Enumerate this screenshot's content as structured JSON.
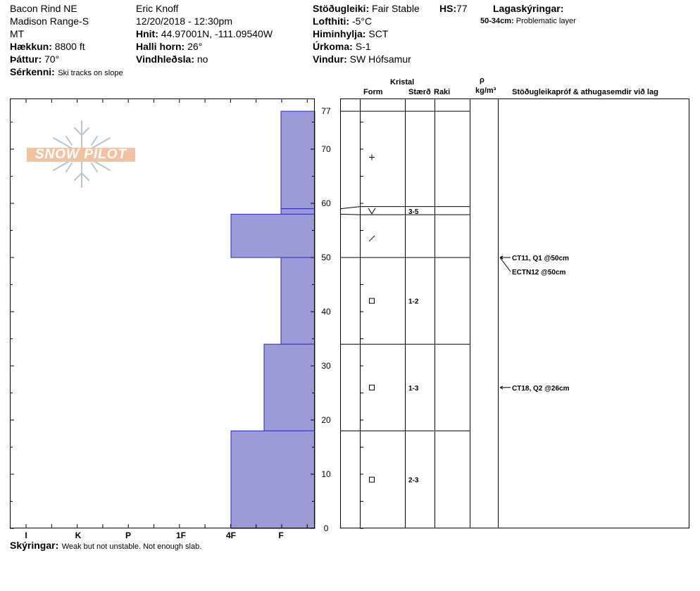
{
  "header": {
    "location": "Bacon Rind NE",
    "range": "Madison Range-S",
    "state": "MT",
    "elevation_label": "Hækkun:",
    "elevation_value": "8800 ft",
    "aspect_label": "Þáttur:",
    "aspect_value": "70°",
    "features_label": "Sérkenni:",
    "features_value": "Ski tracks on slope",
    "observer": "Eric Knoff",
    "datetime": "12/20/2018 - 12:30pm",
    "coords_label": "Hnit:",
    "coords_value": "44.97001N, -111.09540W",
    "slope_label": "Halli horn:",
    "slope_value": "26°",
    "wind_loading_label": "Vindhleðsla:",
    "wind_loading_value": "no",
    "stability_label": "Stöðugleiki:",
    "stability_value": "Fair Stable",
    "hs_label": "HS:",
    "hs_value": "77",
    "air_temp_label": "Lofthiti:",
    "air_temp_value": "-5°C",
    "sky_label": "Himinhylja:",
    "sky_value": "SCT",
    "precip_label": "Úrkoma:",
    "precip_value": "S-1",
    "wind_label": "Vindur:",
    "wind_value": "SW Hófsamur",
    "layer_notes_label": "Lagaskýringar:",
    "layer_notes_range": "50-34cm:",
    "layer_notes_text": "Problematic layer"
  },
  "logo_text": "SNOW PILOT",
  "hardness_axis": {
    "labels": [
      "I",
      "K",
      "P",
      "1F",
      "4F",
      "F"
    ]
  },
  "depth_axis": {
    "ticks": [
      "0",
      "10",
      "20",
      "30",
      "40",
      "50",
      "60",
      "70",
      "77"
    ]
  },
  "columns": {
    "crystal": "Kristal",
    "form": "Form",
    "size": "Stærð",
    "moisture": "Raki",
    "rho": "ρ",
    "density_unit": "kg/m³",
    "tests_header": "Stöðugleikapróf & athugasemdir við lag"
  },
  "layers": [
    {
      "top": 77,
      "bottom": 59,
      "hardness": "F",
      "form": "+",
      "size": ""
    },
    {
      "top": 59,
      "bottom": 58,
      "hardness": "F",
      "form": "V",
      "size": "3-5"
    },
    {
      "top": 58,
      "bottom": 50,
      "hardness": "4F",
      "form": "/",
      "size": ""
    },
    {
      "top": 50,
      "bottom": 34,
      "hardness": "F",
      "form": "□",
      "size": "1-2"
    },
    {
      "top": 34,
      "bottom": 18,
      "hardness": "F-",
      "form": "□",
      "size": "1-3"
    },
    {
      "top": 18,
      "bottom": 0,
      "hardness": "4F",
      "form": "□",
      "size": "2-3"
    }
  ],
  "tests": [
    {
      "label": "CT11, Q1 @50cm",
      "depth": 50
    },
    {
      "label": "ECTN12 @50cm",
      "depth": 50
    },
    {
      "label": "CT18, Q2 @26cm",
      "depth": 26
    }
  ],
  "footer": {
    "notes_label": "Skýringar:",
    "notes_value": "Weak but not unstable. Not enough slab."
  },
  "colors": {
    "layer_fill": "#9b9bd8",
    "layer_stroke": "#2a2ac0",
    "logo_orange": "#f2c2a2",
    "logo_snowflake": "#b8c4d0"
  }
}
